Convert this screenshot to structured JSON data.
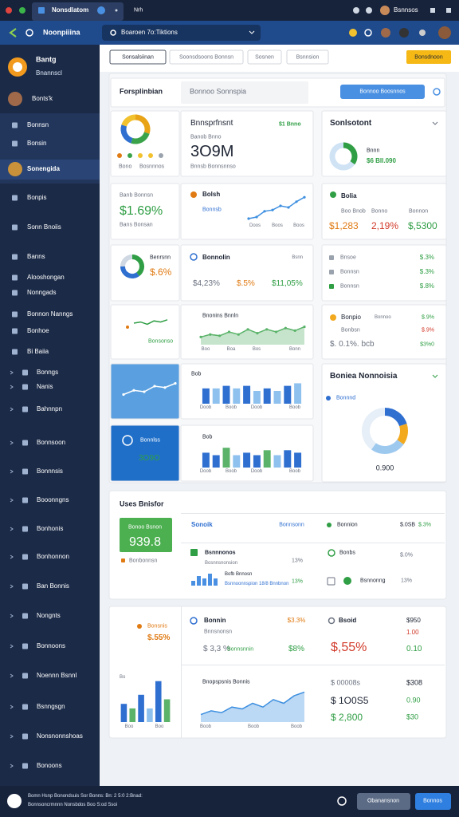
{
  "browser": {
    "tab": "Nonsdlatom",
    "tab2": "Nrh",
    "profile": "Bsnnsos"
  },
  "toolbar": {
    "site": "Noonpiiina",
    "search": "Boaroen 7o:Tiktions"
  },
  "sidebar": {
    "user": "Bantg",
    "user_role": "Bnannscl",
    "user2": "Bonts'k",
    "items": [
      "Bonnsn",
      "Bonsin",
      "Sonengida",
      "Bonpis",
      "Sonn Bnoiis",
      "Banns",
      "Alooshongan",
      "Nonngads",
      "Bonnon Nanngs",
      "Bonhoe",
      "Bi Baiia",
      "Bonngs",
      "Nanis",
      "Bahnnpn",
      "Bonnsoon",
      "Bonnnsis",
      "Booonngns",
      "Bonhonis",
      "Bonhonnon",
      "Ban Bonnis",
      "Nongnts",
      "Bonnoons",
      "Noennn Bsnnl",
      "Bsnngsgn",
      "Nonsnonnshoas",
      "Bonoons"
    ]
  },
  "filters": {
    "tabs": [
      "Sonsalsiinan",
      "Soonsdsoons Bonnsn",
      "Sosnen",
      "Bsnnsion"
    ],
    "action": "Bonsdnoon"
  },
  "header": {
    "title": "Forsplinbian",
    "subtitle": "Bonnoo Sonnspia",
    "button": "Bonnoo Boosnnos"
  },
  "kpi_donut": {
    "legend": [
      "Bono",
      "Bosnnnos"
    ],
    "chart": {
      "type": "pie",
      "values": [
        30,
        25,
        25,
        20
      ],
      "colors": [
        "#e8a317",
        "#3aa34a",
        "#2f6fd0",
        "#f2c12e"
      ]
    }
  },
  "revenue": {
    "title": "Bnnsprfnsnt",
    "badge": "$1 Bnno",
    "label": "Banob Bnno",
    "value": "3O9M",
    "note": "Bnnsb Bonnsnnso"
  },
  "sentiment": {
    "title": "Sonlsotont",
    "label": "Bnnn",
    "value": "$6 Bll.090",
    "chart": {
      "type": "pie",
      "values": [
        35,
        65
      ],
      "colors": [
        "#2f9e44",
        "#cfe3f5"
      ]
    }
  },
  "growth": {
    "label": "Banb Bonnsn",
    "value": "$1.69%",
    "note": "Bans Bonsan"
  },
  "trend": {
    "title": "Bolsh",
    "badge": "Bonnsb",
    "chart": {
      "type": "line",
      "values": [
        1.5,
        2,
        3.8,
        4.2,
        5.5,
        5,
        6.8,
        8.2
      ],
      "ylim": [
        0,
        10
      ],
      "color": "#3d8fe0"
    },
    "labels": [
      "Doos",
      "Boos",
      "Boos"
    ]
  },
  "balance": {
    "title": "Bolia",
    "labels": [
      "Boo Bnob",
      "Bonno",
      "Bonnon"
    ],
    "values": [
      "$1,283",
      "2,19%",
      "$,5300"
    ]
  },
  "mix": {
    "title": "Benrsnn",
    "value": "$.6%",
    "chart": {
      "type": "pie",
      "values": [
        40,
        35,
        25
      ],
      "colors": [
        "#2f9e44",
        "#2f6fd0",
        "#cfd8e3"
      ]
    }
  },
  "rates": {
    "title": "Bonnolin",
    "tag": "Bsnn",
    "values": [
      "$4,23%",
      "$.5%",
      "$11,05%"
    ]
  },
  "list1": {
    "rows": [
      [
        "Bnsoe",
        "$.3%"
      ],
      [
        "Bonnsn",
        "$.3%"
      ],
      [
        "Bonnsn",
        "$.8%"
      ]
    ]
  },
  "mini": {
    "label": "Bonsonso",
    "chart": {
      "type": "line",
      "values": [
        5,
        6,
        4,
        7,
        6,
        8
      ],
      "ylim": [
        0,
        10
      ],
      "color": "#2f9e44"
    }
  },
  "area": {
    "title": "Bnonins Bnnln",
    "chart": {
      "type": "area",
      "values": [
        3,
        4,
        3.5,
        5,
        4,
        6,
        4.5,
        6,
        5,
        6.5,
        5.5,
        7
      ],
      "ylim": [
        0,
        10
      ],
      "color": "#5bb36a"
    },
    "labels": [
      "Boo",
      "Boa",
      "Bos",
      "Bonn"
    ]
  },
  "list2": {
    "title": "Bonpio",
    "rows": [
      [
        "Bonnoo",
        "$.9%"
      ],
      [
        "Bonbsn",
        "$.9%"
      ],
      [
        "$. 0.1%. bcb",
        "$3%0"
      ]
    ]
  },
  "image_card": {
    "chart": {
      "type": "line",
      "values": [
        3,
        4.5,
        4,
        6,
        5.5,
        7
      ],
      "ylim": [
        0,
        10
      ],
      "color": "#ffffff"
    }
  },
  "bars1": {
    "title": "Bob",
    "chart": {
      "type": "bar",
      "values": [
        6,
        6,
        7,
        6,
        7,
        5,
        6,
        5,
        7,
        8
      ],
      "ylim": [
        0,
        10
      ],
      "colors": [
        "#2f6fd0",
        "#8fc1ef"
      ]
    },
    "labels": [
      "Doob",
      "Boob",
      "Doob",
      "Boob"
    ]
  },
  "engagement": {
    "title": "Boniea Nonnoisia",
    "legend": "Bonnnd",
    "value": "0.900",
    "chart": {
      "type": "pie",
      "values": [
        20,
        15,
        25,
        40
      ],
      "colors": [
        "#2f6fd0",
        "#f2a91e",
        "#9ec9ef",
        "#e6eef7"
      ]
    }
  },
  "blue_card": {
    "title": "Bonnlss",
    "value": "3O9O"
  },
  "bars2": {
    "title": "Bob",
    "chart": {
      "type": "bar",
      "values": [
        6,
        5,
        8,
        5,
        6,
        5,
        7,
        5,
        7,
        6
      ],
      "ylim": [
        0,
        10
      ],
      "colors": [
        "#2f6fd0",
        "#2f6fd0",
        "#5bb36a",
        "#8fc1ef"
      ]
    },
    "labels": [
      "Doob",
      "Boob",
      "Doob",
      "Boob"
    ]
  },
  "users": {
    "title": "Uses Bnisfor",
    "box_label": "Bonoo Bsnon",
    "box_value": "939.8",
    "note": "Bonbonnsn",
    "head": [
      "Sonoik",
      "Bonnsonn",
      "Bonnion",
      "$.0SB",
      "$.3%"
    ],
    "row1": [
      "Bsnnnonos",
      "Bosnnsnonsion",
      "13%",
      "Bonbs",
      "$.0%"
    ],
    "row2": [
      "Bofb Bnnosn",
      "Bsnnoonnspion 18/8 Bnnbnon",
      "13%",
      "Bsnnonng",
      "13%"
    ]
  },
  "summary": {
    "left_label": "Bonsnis",
    "left_value": "$.55%",
    "mid": [
      "Bonnin",
      "$3.3%",
      "Bnnsnonsn",
      "$ 3,3 %",
      "Bonnsnnin",
      "$8%"
    ],
    "right": [
      "Bsoid",
      "$950",
      "1.00",
      "$,55%",
      "0.10"
    ]
  },
  "bars3": {
    "chart": {
      "type": "bar",
      "values": [
        4,
        3,
        6,
        3,
        9,
        5
      ],
      "ylim": [
        0,
        10
      ],
      "colors": [
        "#2f6fd0",
        "#5bb36a",
        "#2f6fd0",
        "#8fc1ef"
      ]
    },
    "labels": [
      "Bo",
      "Boo",
      "Boo"
    ]
  },
  "line2": {
    "title": "Bnopspsnis Bonnis",
    "chart": {
      "type": "area",
      "values": [
        2,
        3,
        2.5,
        4,
        3.5,
        5,
        4,
        6,
        5,
        7,
        8
      ],
      "ylim": [
        0,
        10
      ],
      "color": "#3d8fe0"
    },
    "labels": [
      "Boob",
      "Boob",
      "Boob"
    ]
  },
  "totals": {
    "rows": [
      [
        "$ 00008s",
        "$308"
      ],
      [
        "$ 1O0S5",
        "0.90"
      ],
      [
        "$ 2,800",
        "$30"
      ]
    ]
  },
  "footer": {
    "line1": "Bomn Hsnp Bonondsuis Sor Bonns: Bn: 2 5:0 2:Bnad:",
    "line2": "Bonnsoncrmnnn Nonsbdos Boo S:od Ssoi",
    "secondary": "Obanansnon",
    "primary": "Bonnos"
  }
}
